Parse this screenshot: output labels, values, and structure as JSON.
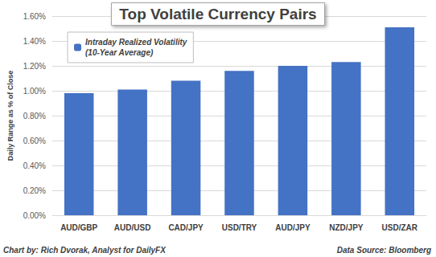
{
  "chart_data": {
    "type": "bar",
    "title": "Top Volatile Currency Pairs",
    "y_label": "Daily Range as % of Close",
    "annotations": [
      "Chart by: Rich Dvorak, Analyst for DailyFX",
      "Data Source: Bloomberg"
    ],
    "categories": [
      "AUD/GBP",
      "AUD/USD",
      "CAD/JPY",
      "USD/TRY",
      "AUD/JPY",
      "NZD/JPY",
      "USD/ZAR"
    ],
    "series": [
      {
        "name": "Intraday Realized Volatility (10-Year Average)",
        "color": "#4472c4",
        "values": [
          0.98,
          1.01,
          1.08,
          1.16,
          1.2,
          1.23,
          1.51
        ]
      }
    ],
    "ylim": [
      0,
      1.6
    ],
    "yticks": [
      {
        "value": 0,
        "label": "0.00%"
      },
      {
        "value": 0.2,
        "label": "0.20%"
      },
      {
        "value": 0.4,
        "label": "0.40%"
      },
      {
        "value": 0.6,
        "label": "0.60%"
      },
      {
        "value": 0.8,
        "label": "0.80%"
      },
      {
        "value": 1.0,
        "label": "1.00%"
      },
      {
        "value": 1.2,
        "label": "1.20%"
      },
      {
        "value": 1.4,
        "label": "1.40%"
      },
      {
        "value": 1.6,
        "label": "1.60%"
      }
    ],
    "grid": true,
    "legend": "upper left"
  }
}
